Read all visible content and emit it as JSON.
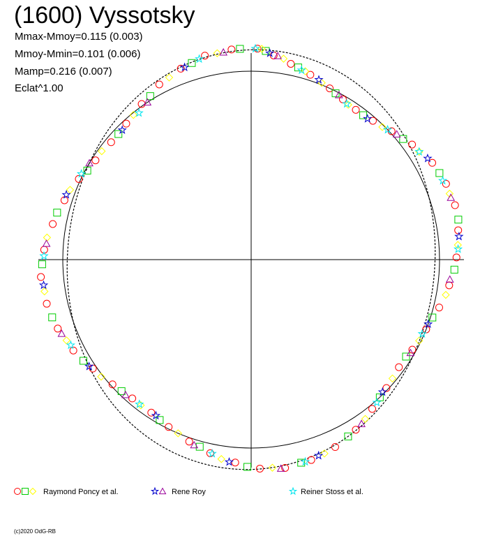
{
  "chart_data": {
    "type": "scatter",
    "title": "(1600) Vyssotsky",
    "annotations": [
      "Mmax-Mmoy=0.115 (0.003)",
      "Mmoy-Mmin=0.101 (0.006)",
      "Mamp=0.216 (0.007)",
      "Eclat^1.00"
    ],
    "polar_reference": {
      "mean_level": 1.0
    },
    "axes": {
      "crosshair": true,
      "grid": false
    },
    "series": [
      {
        "name": "Raymond Poncy et al.",
        "color": "#ff0000",
        "marker": "circle",
        "points": [
          [
            0.03,
            1.12
          ],
          [
            0.11,
            1.09
          ],
          [
            0.2,
            1.06
          ],
          [
            0.31,
            1.03
          ],
          [
            0.43,
            1.0
          ],
          [
            0.52,
            0.98
          ],
          [
            0.61,
            0.97
          ],
          [
            0.72,
            0.98
          ],
          [
            0.83,
            1.01
          ],
          [
            0.95,
            1.05
          ],
          [
            1.08,
            1.09
          ],
          [
            1.2,
            1.11
          ],
          [
            1.31,
            1.12
          ],
          [
            1.43,
            1.11
          ],
          [
            1.56,
            1.09
          ],
          [
            1.7,
            1.06
          ],
          [
            1.82,
            1.03
          ],
          [
            1.95,
            1.0
          ],
          [
            2.08,
            0.98
          ],
          [
            2.2,
            0.97
          ],
          [
            2.33,
            0.99
          ],
          [
            2.46,
            1.02
          ],
          [
            2.59,
            1.06
          ],
          [
            2.72,
            1.09
          ],
          [
            2.85,
            1.11
          ],
          [
            2.98,
            1.12
          ],
          [
            3.1,
            1.11
          ],
          [
            3.22,
            1.08
          ],
          [
            3.35,
            1.05
          ],
          [
            3.47,
            1.02
          ],
          [
            3.6,
            0.99
          ],
          [
            3.72,
            0.97
          ],
          [
            3.85,
            0.97
          ],
          [
            3.98,
            0.99
          ],
          [
            4.11,
            1.02
          ],
          [
            4.24,
            1.06
          ],
          [
            4.37,
            1.09
          ],
          [
            4.5,
            1.11
          ],
          [
            4.63,
            1.12
          ],
          [
            4.76,
            1.1
          ],
          [
            4.89,
            1.07
          ],
          [
            5.02,
            1.04
          ],
          [
            5.15,
            1.01
          ],
          [
            5.28,
            0.98
          ],
          [
            5.41,
            0.97
          ],
          [
            5.54,
            0.98
          ],
          [
            5.67,
            1.01
          ],
          [
            5.8,
            1.05
          ],
          [
            5.93,
            1.08
          ],
          [
            6.06,
            1.11
          ],
          [
            6.19,
            1.12
          ]
        ]
      },
      {
        "name": "Raymond Poncy et al.",
        "color": "#00cc00",
        "marker": "square",
        "points": [
          [
            0.07,
            1.11
          ],
          [
            0.24,
            1.05
          ],
          [
            0.47,
            0.99
          ],
          [
            0.66,
            0.97
          ],
          [
            0.9,
            1.03
          ],
          [
            1.14,
            1.1
          ],
          [
            1.38,
            1.12
          ],
          [
            1.62,
            1.08
          ],
          [
            1.88,
            1.01
          ],
          [
            2.13,
            0.97
          ],
          [
            2.39,
            1.0
          ],
          [
            2.64,
            1.07
          ],
          [
            2.9,
            1.11
          ],
          [
            3.16,
            1.1
          ],
          [
            3.41,
            1.03
          ],
          [
            3.66,
            0.98
          ],
          [
            3.92,
            0.98
          ],
          [
            4.17,
            1.04
          ],
          [
            4.43,
            1.1
          ],
          [
            4.69,
            1.11
          ],
          [
            4.95,
            1.06
          ],
          [
            5.21,
            0.99
          ],
          [
            5.47,
            0.97
          ],
          [
            5.73,
            1.02
          ],
          [
            5.99,
            1.09
          ],
          [
            6.23,
            1.12
          ]
        ]
      },
      {
        "name": "Raymond Poncy et al.",
        "color": "#ffff00",
        "marker": "diamond",
        "points": [
          [
            0.05,
            1.12
          ],
          [
            0.16,
            1.08
          ],
          [
            0.28,
            1.04
          ],
          [
            0.38,
            1.01
          ],
          [
            0.56,
            0.97
          ],
          [
            0.78,
            0.99
          ],
          [
            1.0,
            1.06
          ],
          [
            1.25,
            1.11
          ],
          [
            1.5,
            1.1
          ],
          [
            1.75,
            1.05
          ],
          [
            2.02,
            0.99
          ],
          [
            2.27,
            0.98
          ],
          [
            2.52,
            1.04
          ],
          [
            2.78,
            1.1
          ],
          [
            3.04,
            1.11
          ],
          [
            3.29,
            1.07
          ],
          [
            3.54,
            1.0
          ],
          [
            3.79,
            0.97
          ],
          [
            4.05,
            1.01
          ],
          [
            4.3,
            1.07
          ],
          [
            4.56,
            1.11
          ],
          [
            4.82,
            1.09
          ],
          [
            5.08,
            1.03
          ],
          [
            5.34,
            0.98
          ],
          [
            5.6,
            0.99
          ],
          [
            5.86,
            1.06
          ],
          [
            6.12,
            1.11
          ]
        ]
      },
      {
        "name": "Rene Roy",
        "color": "#0000cc",
        "marker": "star",
        "points": [
          [
            0.09,
            1.1
          ],
          [
            0.36,
            1.02
          ],
          [
            0.69,
            0.97
          ],
          [
            1.05,
            1.08
          ],
          [
            1.46,
            1.11
          ],
          [
            1.92,
            1.0
          ],
          [
            2.36,
            0.99
          ],
          [
            2.81,
            1.1
          ],
          [
            3.25,
            1.08
          ],
          [
            3.69,
            0.97
          ],
          [
            4.13,
            1.03
          ],
          [
            4.59,
            1.11
          ],
          [
            5.05,
            1.04
          ],
          [
            5.5,
            0.97
          ],
          [
            5.95,
            1.08
          ]
        ]
      },
      {
        "name": "Rene Roy",
        "color": "#990099",
        "marker": "triangle",
        "points": [
          [
            0.13,
            1.09
          ],
          [
            0.49,
            0.99
          ],
          [
            0.86,
            1.02
          ],
          [
            1.27,
            1.11
          ],
          [
            1.67,
            1.06
          ],
          [
            2.1,
            0.98
          ],
          [
            2.55,
            1.05
          ],
          [
            3.0,
            1.12
          ],
          [
            3.44,
            1.03
          ],
          [
            3.89,
            0.98
          ],
          [
            4.34,
            1.08
          ],
          [
            4.79,
            1.09
          ],
          [
            5.25,
            1.0
          ],
          [
            5.7,
            1.0
          ],
          [
            6.15,
            1.11
          ]
        ]
      },
      {
        "name": "Reiner Stoss et al.",
        "color": "#00e5ee",
        "marker": "star",
        "points": [
          [
            0.02,
            1.12
          ],
          [
            0.26,
            1.04
          ],
          [
            0.55,
            0.97
          ],
          [
            0.81,
            1.0
          ],
          [
            1.0,
            1.06
          ],
          [
            1.18,
            1.1
          ],
          [
            1.52,
            1.1
          ],
          [
            1.98,
            0.99
          ],
          [
            2.42,
            1.01
          ],
          [
            2.88,
            1.11
          ],
          [
            3.34,
            1.05
          ],
          [
            3.8,
            0.97
          ],
          [
            4.27,
            1.06
          ],
          [
            4.73,
            1.1
          ],
          [
            5.18,
            1.01
          ],
          [
            5.63,
            0.98
          ],
          [
            6.03,
            1.1
          ]
        ]
      }
    ],
    "legend": {
      "placement": "bottom",
      "entries": [
        {
          "label": "Raymond Poncy et al.",
          "markers": [
            {
              "shape": "circle",
              "color": "#ff0000"
            },
            {
              "shape": "square",
              "color": "#00cc00"
            },
            {
              "shape": "diamond",
              "color": "#ffff00"
            }
          ]
        },
        {
          "label": "Rene Roy",
          "markers": [
            {
              "shape": "star",
              "color": "#0000cc"
            },
            {
              "shape": "triangle",
              "color": "#990099"
            }
          ]
        },
        {
          "label": "Reiner Stoss et al.",
          "markers": [
            {
              "shape": "star",
              "color": "#00e5ee"
            }
          ]
        }
      ]
    }
  },
  "footer": {
    "copyright": "(c)2020 OdG-RB"
  }
}
